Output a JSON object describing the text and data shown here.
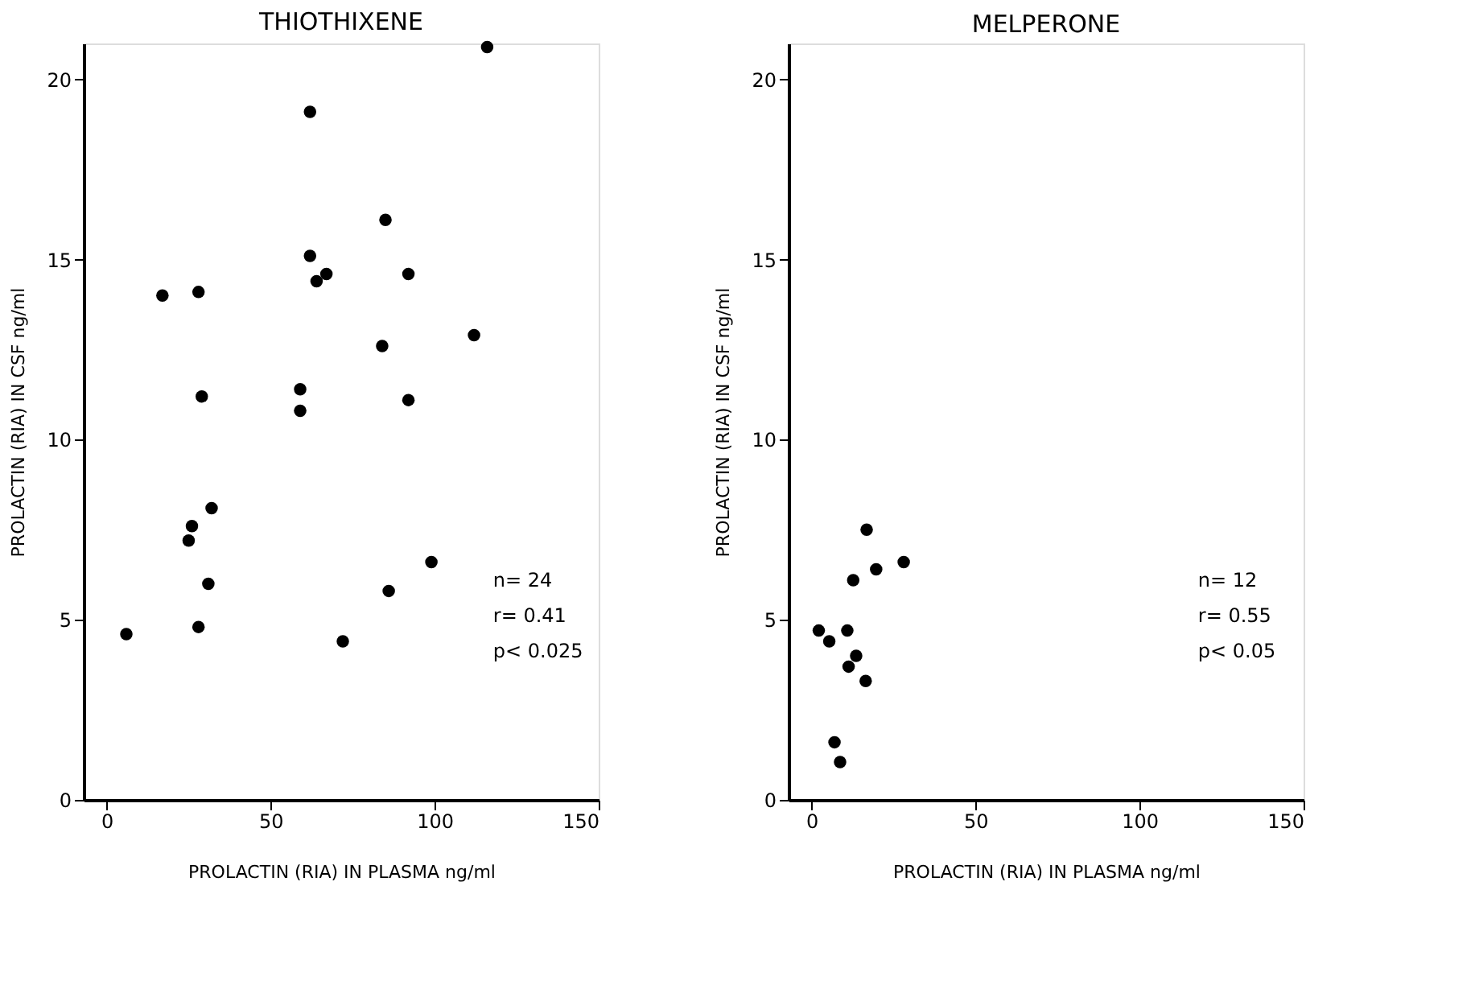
{
  "chart_data": [
    {
      "type": "scatter",
      "title": "THIOTHIXENE",
      "xlabel": "PROLACTIN (RIA) IN PLASMA ng/ml",
      "ylabel": "PROLACTIN (RIA) IN CSF ng/ml",
      "x": [
        6,
        17,
        28,
        29,
        25,
        26,
        32,
        31,
        28,
        59,
        59,
        62,
        62,
        64,
        67,
        72,
        85,
        84,
        86,
        92,
        92,
        99,
        112,
        116
      ],
      "series": [
        {
          "color": "#000000",
          "values": [
            4.6,
            14,
            14.1,
            11.2,
            7.2,
            7.6,
            8.1,
            6.0,
            4.8,
            11.4,
            10.8,
            19.1,
            15.1,
            14.4,
            14.6,
            4.4,
            16.1,
            12.6,
            5.8,
            14.6,
            11.1,
            6.6,
            12.9,
            20.9
          ]
        }
      ],
      "xlim": [
        -7,
        150
      ],
      "xticks": [
        0,
        50,
        100,
        150
      ],
      "ylim": [
        0,
        21
      ],
      "yticks": [
        0,
        5,
        10,
        15,
        20
      ],
      "grid": false,
      "marker": "circle",
      "annotations": [
        "n= 24",
        "r= 0.41",
        "p< 0.025"
      ]
    },
    {
      "type": "scatter",
      "title": "MELPERONE",
      "xlabel": "PROLACTIN (RIA) IN PLASMA ng/ml",
      "ylabel": "PROLACTIN (RIA) IN CSF ng/ml",
      "x": [
        2.2,
        5.4,
        10.9,
        12.7,
        16.8,
        19.7,
        28.1,
        13.6,
        11.3,
        16.5,
        7.0,
        8.7
      ],
      "series": [
        {
          "color": "#000000",
          "values": [
            4.7,
            4.4,
            4.7,
            6.1,
            7.5,
            6.4,
            6.6,
            4.0,
            3.7,
            3.3,
            1.6,
            1.05
          ]
        }
      ],
      "xlim": [
        -7,
        150
      ],
      "xticks": [
        0,
        50,
        100,
        150
      ],
      "ylim": [
        0,
        21
      ],
      "yticks": [
        0,
        5,
        10,
        15,
        20
      ],
      "grid": false,
      "marker": "circle",
      "annotations": [
        "n= 12",
        "r= 0.55",
        "p< 0.05"
      ]
    }
  ]
}
